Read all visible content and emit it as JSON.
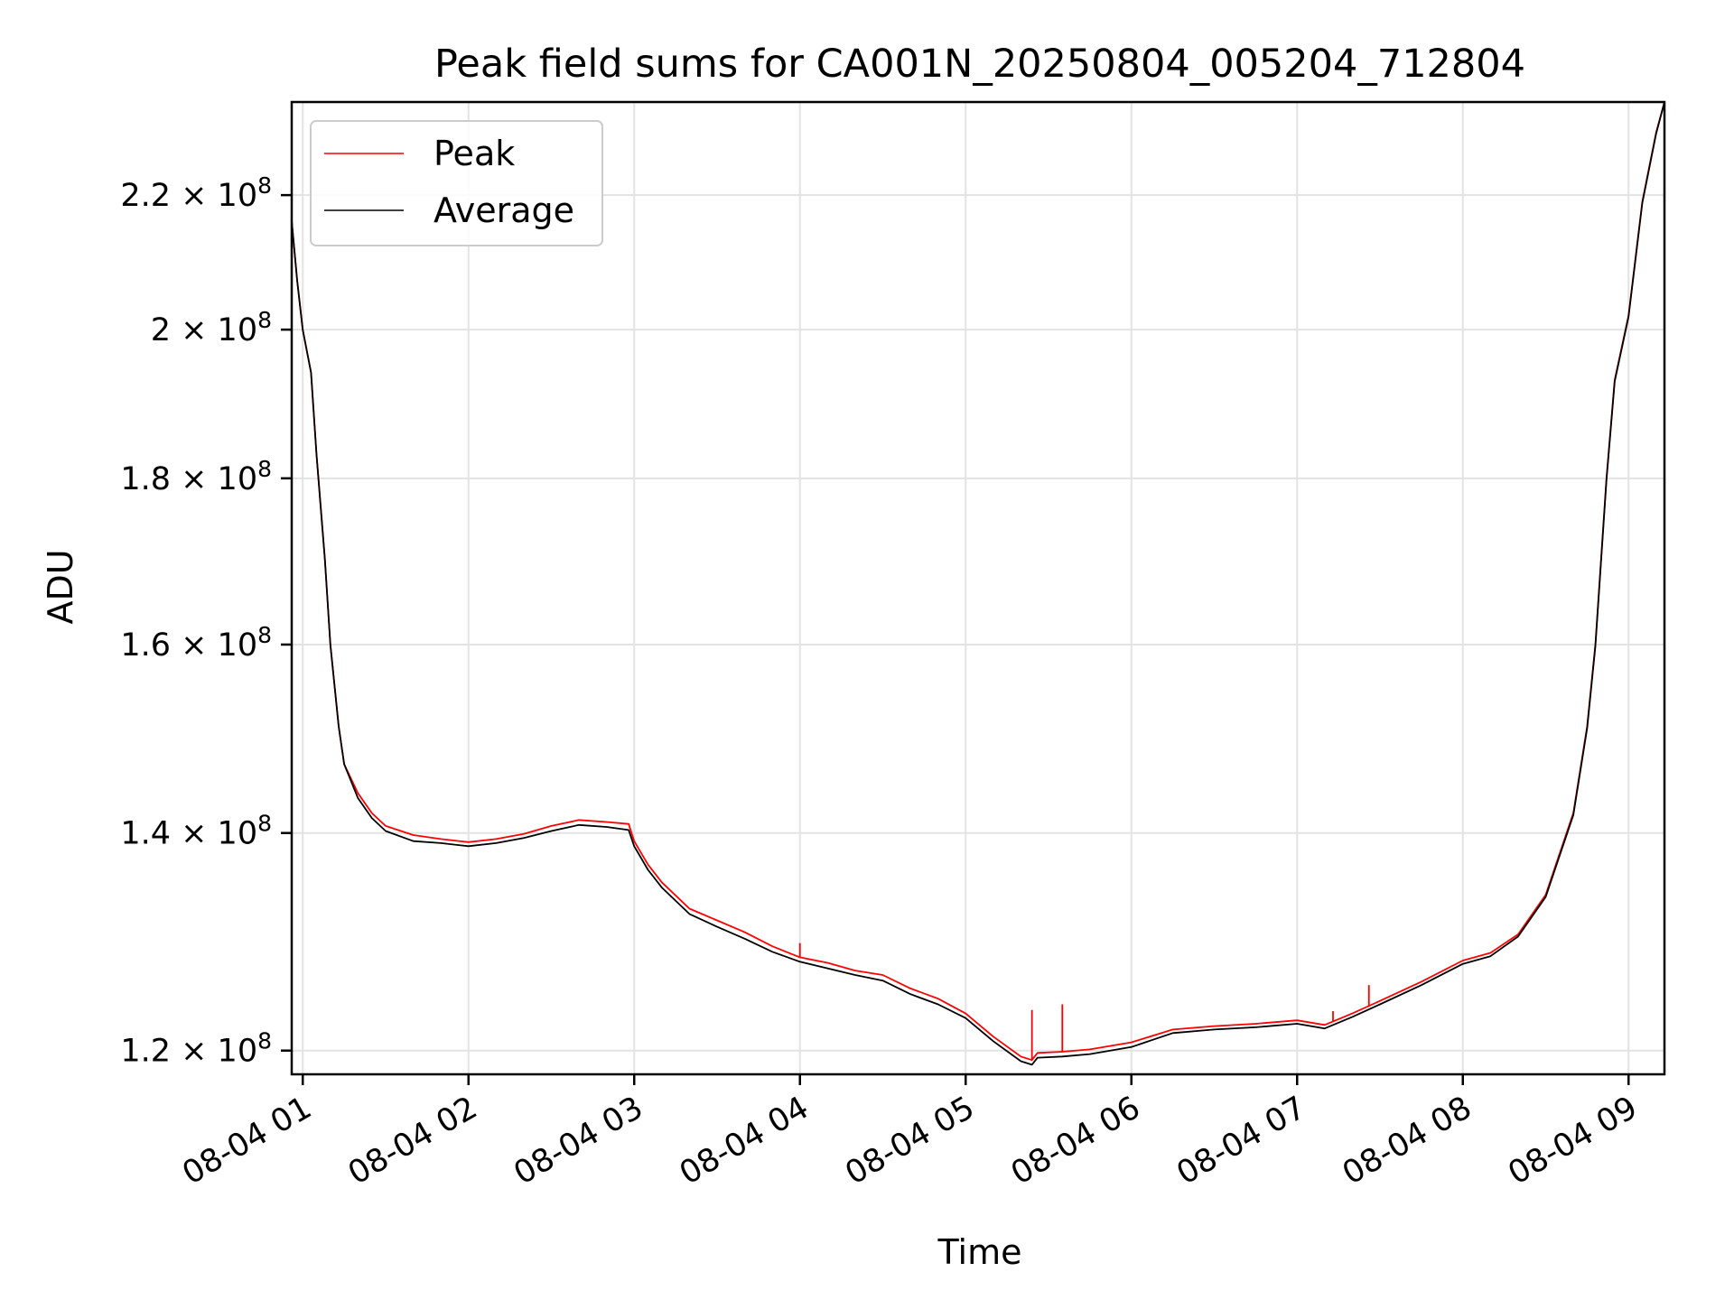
{
  "chart_data": {
    "type": "line",
    "title": "Peak field sums for CA001N_20250804_005204_712804",
    "xlabel": "Time",
    "ylabel": "ADU",
    "grid": true,
    "legend_position": "top-left",
    "y_scale": "log",
    "xlim": [
      "2025-08-04 00:56",
      "2025-08-04 09:13"
    ],
    "ylim": [
      118000000,
      235000000
    ],
    "x_ticks": [
      {
        "value": "2025-08-04 01:00",
        "label": "08-04 01"
      },
      {
        "value": "2025-08-04 02:00",
        "label": "08-04 02"
      },
      {
        "value": "2025-08-04 03:00",
        "label": "08-04 03"
      },
      {
        "value": "2025-08-04 04:00",
        "label": "08-04 04"
      },
      {
        "value": "2025-08-04 05:00",
        "label": "08-04 05"
      },
      {
        "value": "2025-08-04 06:00",
        "label": "08-04 06"
      },
      {
        "value": "2025-08-04 07:00",
        "label": "08-04 07"
      },
      {
        "value": "2025-08-04 08:00",
        "label": "08-04 08"
      },
      {
        "value": "2025-08-04 09:00",
        "label": "08-04 09"
      }
    ],
    "y_ticks": [
      {
        "value": 120000000,
        "mantissa": "1.2",
        "exponent": "8"
      },
      {
        "value": 140000000,
        "mantissa": "1.4",
        "exponent": "8"
      },
      {
        "value": 160000000,
        "mantissa": "1.6",
        "exponent": "8"
      },
      {
        "value": 180000000,
        "mantissa": "1.8",
        "exponent": "8"
      },
      {
        "value": 200000000,
        "mantissa": "2",
        "exponent": "8"
      },
      {
        "value": 220000000,
        "mantissa": "2.2",
        "exponent": "8"
      }
    ],
    "series": [
      {
        "name": "Peak",
        "color": "#ff0000",
        "points": [
          [
            "2025-08-04 00:56",
            216000000
          ],
          [
            "2025-08-04 00:58",
            207000000
          ],
          [
            "2025-08-04 01:00",
            200000000
          ],
          [
            "2025-08-04 01:03",
            194000000
          ],
          [
            "2025-08-04 01:05",
            183000000
          ],
          [
            "2025-08-04 01:08",
            170000000
          ],
          [
            "2025-08-04 01:10",
            160000000
          ],
          [
            "2025-08-04 01:13",
            151000000
          ],
          [
            "2025-08-04 01:15",
            147000000
          ],
          [
            "2025-08-04 01:20",
            144000000
          ],
          [
            "2025-08-04 01:25",
            142000000
          ],
          [
            "2025-08-04 01:30",
            140700000
          ],
          [
            "2025-08-04 01:40",
            139800000
          ],
          [
            "2025-08-04 01:50",
            139400000
          ],
          [
            "2025-08-04 02:00",
            139100000
          ],
          [
            "2025-08-04 02:10",
            139400000
          ],
          [
            "2025-08-04 02:20",
            139900000
          ],
          [
            "2025-08-04 02:30",
            140700000
          ],
          [
            "2025-08-04 02:40",
            141300000
          ],
          [
            "2025-08-04 02:50",
            141100000
          ],
          [
            "2025-08-04 02:58",
            140900000
          ],
          [
            "2025-08-04 03:00",
            139200000
          ],
          [
            "2025-08-04 03:05",
            136900000
          ],
          [
            "2025-08-04 03:10",
            135200000
          ],
          [
            "2025-08-04 03:20",
            132700000
          ],
          [
            "2025-08-04 03:30",
            131600000
          ],
          [
            "2025-08-04 03:40",
            130500000
          ],
          [
            "2025-08-04 03:50",
            129200000
          ],
          [
            "2025-08-04 04:00",
            128200000
          ],
          [
            "2025-08-04 04:10",
            127700000
          ],
          [
            "2025-08-04 04:20",
            127000000
          ],
          [
            "2025-08-04 04:30",
            126600000
          ],
          [
            "2025-08-04 04:40",
            125400000
          ],
          [
            "2025-08-04 04:50",
            124500000
          ],
          [
            "2025-08-04 05:00",
            123200000
          ],
          [
            "2025-08-04 05:10",
            121200000
          ],
          [
            "2025-08-04 05:20",
            119500000
          ],
          [
            "2025-08-04 05:24",
            119200000
          ],
          [
            "2025-08-04 05:26",
            119800000
          ],
          [
            "2025-08-04 05:35",
            119900000
          ],
          [
            "2025-08-04 05:45",
            120100000
          ],
          [
            "2025-08-04 06:00",
            120700000
          ],
          [
            "2025-08-04 06:15",
            121800000
          ],
          [
            "2025-08-04 06:30",
            122100000
          ],
          [
            "2025-08-04 06:45",
            122300000
          ],
          [
            "2025-08-04 07:00",
            122600000
          ],
          [
            "2025-08-04 07:10",
            122200000
          ],
          [
            "2025-08-04 07:20",
            123200000
          ],
          [
            "2025-08-04 07:30",
            124300000
          ],
          [
            "2025-08-04 07:45",
            126000000
          ],
          [
            "2025-08-04 08:00",
            127900000
          ],
          [
            "2025-08-04 08:10",
            128600000
          ],
          [
            "2025-08-04 08:20",
            130300000
          ],
          [
            "2025-08-04 08:30",
            134000000
          ],
          [
            "2025-08-04 08:40",
            142000000
          ],
          [
            "2025-08-04 08:45",
            151000000
          ],
          [
            "2025-08-04 08:48",
            160000000
          ],
          [
            "2025-08-04 08:52",
            180000000
          ],
          [
            "2025-08-04 08:55",
            193000000
          ],
          [
            "2025-08-04 09:00",
            202000000
          ],
          [
            "2025-08-04 09:05",
            219000000
          ],
          [
            "2025-08-04 09:10",
            230000000
          ],
          [
            "2025-08-04 09:13",
            235000000
          ]
        ]
      },
      {
        "name": "Average",
        "color": "#000000",
        "points": [
          [
            "2025-08-04 00:56",
            216000000
          ],
          [
            "2025-08-04 00:58",
            207000000
          ],
          [
            "2025-08-04 01:00",
            200000000
          ],
          [
            "2025-08-04 01:03",
            194000000
          ],
          [
            "2025-08-04 01:05",
            183000000
          ],
          [
            "2025-08-04 01:08",
            170000000
          ],
          [
            "2025-08-04 01:10",
            160000000
          ],
          [
            "2025-08-04 01:13",
            151000000
          ],
          [
            "2025-08-04 01:15",
            147000000
          ],
          [
            "2025-08-04 01:20",
            143500000
          ],
          [
            "2025-08-04 01:25",
            141500000
          ],
          [
            "2025-08-04 01:30",
            140200000
          ],
          [
            "2025-08-04 01:40",
            139200000
          ],
          [
            "2025-08-04 01:50",
            139000000
          ],
          [
            "2025-08-04 02:00",
            138700000
          ],
          [
            "2025-08-04 02:10",
            139000000
          ],
          [
            "2025-08-04 02:20",
            139500000
          ],
          [
            "2025-08-04 02:30",
            140200000
          ],
          [
            "2025-08-04 02:40",
            140800000
          ],
          [
            "2025-08-04 02:50",
            140600000
          ],
          [
            "2025-08-04 02:58",
            140300000
          ],
          [
            "2025-08-04 03:00",
            138700000
          ],
          [
            "2025-08-04 03:05",
            136400000
          ],
          [
            "2025-08-04 03:10",
            134700000
          ],
          [
            "2025-08-04 03:20",
            132200000
          ],
          [
            "2025-08-04 03:30",
            131000000
          ],
          [
            "2025-08-04 03:40",
            129900000
          ],
          [
            "2025-08-04 03:50",
            128700000
          ],
          [
            "2025-08-04 04:00",
            127800000
          ],
          [
            "2025-08-04 04:10",
            127200000
          ],
          [
            "2025-08-04 04:20",
            126600000
          ],
          [
            "2025-08-04 04:30",
            126100000
          ],
          [
            "2025-08-04 04:40",
            124900000
          ],
          [
            "2025-08-04 04:50",
            124000000
          ],
          [
            "2025-08-04 05:00",
            122800000
          ],
          [
            "2025-08-04 05:10",
            120800000
          ],
          [
            "2025-08-04 05:20",
            119100000
          ],
          [
            "2025-08-04 05:24",
            118800000
          ],
          [
            "2025-08-04 05:26",
            119400000
          ],
          [
            "2025-08-04 05:35",
            119500000
          ],
          [
            "2025-08-04 05:45",
            119700000
          ],
          [
            "2025-08-04 06:00",
            120300000
          ],
          [
            "2025-08-04 06:15",
            121500000
          ],
          [
            "2025-08-04 06:30",
            121800000
          ],
          [
            "2025-08-04 06:45",
            122000000
          ],
          [
            "2025-08-04 07:00",
            122300000
          ],
          [
            "2025-08-04 07:10",
            121900000
          ],
          [
            "2025-08-04 07:20",
            122900000
          ],
          [
            "2025-08-04 07:30",
            124000000
          ],
          [
            "2025-08-04 07:45",
            125700000
          ],
          [
            "2025-08-04 08:00",
            127600000
          ],
          [
            "2025-08-04 08:10",
            128300000
          ],
          [
            "2025-08-04 08:20",
            130100000
          ],
          [
            "2025-08-04 08:30",
            133800000
          ],
          [
            "2025-08-04 08:40",
            141800000
          ],
          [
            "2025-08-04 08:45",
            150800000
          ],
          [
            "2025-08-04 08:48",
            159800000
          ],
          [
            "2025-08-04 08:52",
            179800000
          ],
          [
            "2025-08-04 08:55",
            192800000
          ],
          [
            "2025-08-04 09:00",
            201800000
          ],
          [
            "2025-08-04 09:05",
            218800000
          ],
          [
            "2025-08-04 09:10",
            229800000
          ],
          [
            "2025-08-04 09:13",
            235000000
          ]
        ]
      }
    ],
    "spikes": [
      {
        "series": "Peak",
        "x": "2025-08-04 04:00",
        "y": 129500000
      },
      {
        "series": "Peak",
        "x": "2025-08-04 05:24",
        "y": 123500000
      },
      {
        "series": "Peak",
        "x": "2025-08-04 05:35",
        "y": 124000000
      },
      {
        "series": "Peak",
        "x": "2025-08-04 07:13",
        "y": 123400000
      },
      {
        "series": "Peak",
        "x": "2025-08-04 07:26",
        "y": 125700000
      }
    ]
  }
}
